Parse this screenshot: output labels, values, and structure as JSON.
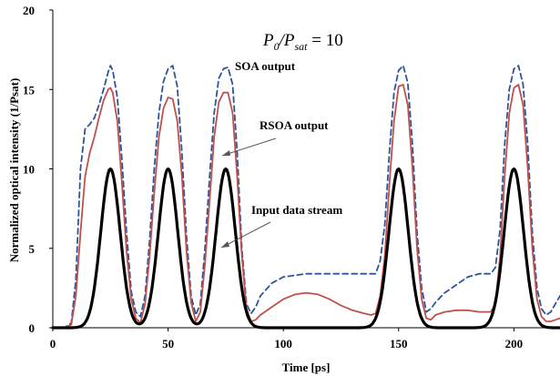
{
  "chart_data": {
    "type": "line",
    "title": "",
    "xlabel": "Time [ps]",
    "ylabel": "Normalized optical intensity (1/Psat)",
    "xlim": [
      0,
      220
    ],
    "ylim": [
      0,
      20
    ],
    "x_ticks": [
      "0",
      "50",
      "100",
      "150",
      "200"
    ],
    "y_ticks": [
      "0",
      "5",
      "10",
      "15",
      "20"
    ],
    "grid": false,
    "legend": "none",
    "equation": {
      "p0": "P",
      "p0_sub": "0",
      "slash": "/P",
      "psat_sub": "sat",
      "rest": " = 10"
    },
    "annotations": [
      {
        "text": "SOA output"
      },
      {
        "text": "RSOA output"
      },
      {
        "text": "Input data stream"
      }
    ],
    "series": [
      {
        "key": "soa",
        "color": "#2e5597",
        "dash": "dashed",
        "x": [
          0,
          5,
          8,
          10,
          12,
          14,
          16,
          18,
          20,
          22,
          24,
          25,
          26,
          28,
          30,
          32,
          34,
          36,
          38,
          40,
          42,
          44,
          46,
          48,
          50,
          52,
          54,
          56,
          58,
          60,
          62,
          64,
          66,
          68,
          70,
          72,
          74,
          76,
          78,
          80,
          82,
          84,
          86,
          88,
          90,
          95,
          100,
          110,
          120,
          130,
          138,
          140,
          142,
          144,
          146,
          148,
          150,
          152,
          154,
          156,
          158,
          160,
          162,
          164,
          166,
          170,
          175,
          180,
          185,
          190,
          192,
          194,
          196,
          198,
          200,
          202,
          204,
          206,
          208,
          210,
          212,
          214,
          216,
          218,
          220
        ],
        "y": [
          0,
          0,
          0.3,
          3,
          10,
          12.5,
          12.8,
          13.2,
          14,
          15,
          16.1,
          16.5,
          16.2,
          14.5,
          10.5,
          6,
          2.3,
          1,
          0.7,
          2,
          5.5,
          10,
          13.5,
          15.5,
          16.3,
          16.5,
          15.2,
          11,
          5.8,
          2,
          0.8,
          1.5,
          5,
          9.5,
          13.5,
          15.7,
          16.3,
          16.4,
          15.3,
          11,
          5,
          1.5,
          0.9,
          1.3,
          2,
          2.8,
          3.2,
          3.4,
          3.4,
          3.4,
          3.4,
          3.4,
          4.2,
          6.5,
          11,
          14.8,
          16.2,
          16.5,
          15.4,
          11.5,
          6,
          2.5,
          1,
          1.2,
          1.6,
          2.2,
          2.7,
          3.2,
          3.4,
          3.4,
          3.8,
          6.2,
          11.5,
          15,
          16.3,
          16.5,
          15.3,
          11.5,
          6,
          2.5,
          1.2,
          0.8,
          1,
          1.5,
          2
        ]
      },
      {
        "key": "rsoa",
        "color": "#c0504d",
        "dash": "solid",
        "x": [
          0,
          5,
          8,
          10,
          12,
          14,
          16,
          18,
          20,
          22,
          24,
          25,
          26,
          28,
          30,
          32,
          34,
          36,
          38,
          40,
          42,
          44,
          46,
          48,
          50,
          52,
          54,
          56,
          58,
          60,
          62,
          64,
          66,
          68,
          70,
          72,
          74,
          76,
          78,
          80,
          82,
          84,
          86,
          88,
          90,
          95,
          100,
          105,
          110,
          115,
          120,
          125,
          130,
          135,
          138,
          140,
          142,
          144,
          146,
          148,
          150,
          152,
          154,
          156,
          158,
          160,
          162,
          164,
          166,
          170,
          175,
          180,
          185,
          190,
          192,
          194,
          196,
          198,
          200,
          202,
          204,
          206,
          208,
          210,
          212,
          214,
          216,
          218,
          220
        ],
        "y": [
          0,
          0,
          0.2,
          2,
          6,
          9.5,
          11,
          12,
          13.2,
          14.3,
          15,
          15.1,
          14.8,
          13,
          9,
          4.8,
          1.8,
          0.6,
          0.3,
          1.5,
          4.5,
          8.5,
          12,
          13.8,
          14.5,
          14.4,
          13,
          9.5,
          4.8,
          1.6,
          0.4,
          1,
          4,
          8,
          12,
          14.2,
          14.8,
          14.8,
          13.5,
          9.5,
          4.5,
          1.2,
          0.4,
          0.5,
          0.8,
          1.3,
          1.8,
          2.1,
          2.2,
          2.1,
          1.8,
          1.4,
          1.1,
          0.9,
          0.8,
          0.9,
          2,
          4.5,
          9,
          13,
          15.2,
          15.3,
          14,
          10,
          5,
          1.8,
          0.6,
          0.5,
          0.8,
          1,
          1.1,
          1.1,
          1,
          1,
          1.5,
          4.5,
          9.5,
          13.5,
          15.1,
          15.3,
          14,
          10,
          5,
          1.8,
          0.7,
          0.4,
          0.4,
          0.5,
          0.6
        ]
      },
      {
        "key": "input",
        "color": "#000000",
        "dash": "solid",
        "pulses": [
          25,
          50,
          75,
          150,
          200
        ],
        "pulse_peak": 10,
        "pulse_sigma": 4.2
      }
    ]
  }
}
